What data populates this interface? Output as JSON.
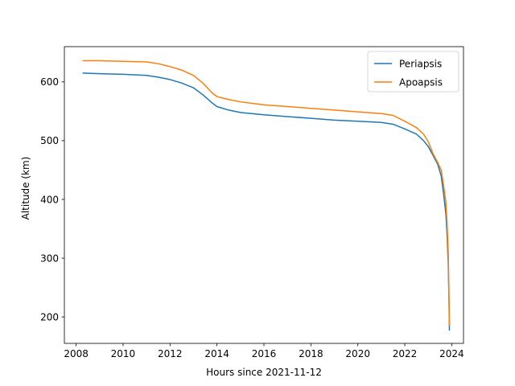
{
  "chart_data": {
    "type": "line",
    "xlabel": "Hours since 2021-11-12",
    "ylabel": "Altitude (km)",
    "xlim": [
      2007.5,
      2024.5
    ],
    "ylim": [
      155,
      660
    ],
    "x_ticks": [
      2008,
      2010,
      2012,
      2014,
      2016,
      2018,
      2020,
      2022,
      2024
    ],
    "y_ticks": [
      200,
      300,
      400,
      500,
      600
    ],
    "grid": false,
    "legend_position": "top-right",
    "series": [
      {
        "name": "Periapsis",
        "color": "#1f77b4",
        "points": [
          [
            2008.3,
            615
          ],
          [
            2009.0,
            614
          ],
          [
            2010.0,
            613
          ],
          [
            2011.0,
            611
          ],
          [
            2011.5,
            608
          ],
          [
            2012.0,
            604
          ],
          [
            2012.5,
            598
          ],
          [
            2013.0,
            590
          ],
          [
            2013.4,
            578
          ],
          [
            2013.8,
            564
          ],
          [
            2014.0,
            558
          ],
          [
            2014.5,
            552
          ],
          [
            2015.0,
            548
          ],
          [
            2016.0,
            544
          ],
          [
            2017.0,
            541
          ],
          [
            2018.0,
            538
          ],
          [
            2019.0,
            535
          ],
          [
            2020.0,
            533
          ],
          [
            2021.0,
            531
          ],
          [
            2021.5,
            528
          ],
          [
            2022.0,
            520
          ],
          [
            2022.5,
            511
          ],
          [
            2022.8,
            500
          ],
          [
            2023.0,
            490
          ],
          [
            2023.2,
            475
          ],
          [
            2023.4,
            460
          ],
          [
            2023.55,
            440
          ],
          [
            2023.65,
            410
          ],
          [
            2023.75,
            375
          ],
          [
            2023.8,
            340
          ],
          [
            2023.85,
            290
          ],
          [
            2023.88,
            230
          ],
          [
            2023.9,
            178
          ]
        ]
      },
      {
        "name": "Apoapsis",
        "color": "#ff7f0e",
        "points": [
          [
            2008.3,
            636
          ],
          [
            2009.0,
            636
          ],
          [
            2010.0,
            635
          ],
          [
            2011.0,
            634
          ],
          [
            2011.5,
            631
          ],
          [
            2012.0,
            626
          ],
          [
            2012.5,
            620
          ],
          [
            2013.0,
            611
          ],
          [
            2013.4,
            598
          ],
          [
            2013.8,
            581
          ],
          [
            2014.0,
            575
          ],
          [
            2014.5,
            570
          ],
          [
            2015.0,
            566
          ],
          [
            2016.0,
            561
          ],
          [
            2017.0,
            558
          ],
          [
            2018.0,
            555
          ],
          [
            2019.0,
            552
          ],
          [
            2020.0,
            549
          ],
          [
            2021.0,
            546
          ],
          [
            2021.5,
            543
          ],
          [
            2022.0,
            533
          ],
          [
            2022.5,
            522
          ],
          [
            2022.8,
            511
          ],
          [
            2023.0,
            498
          ],
          [
            2023.2,
            478
          ],
          [
            2023.4,
            463
          ],
          [
            2023.55,
            450
          ],
          [
            2023.65,
            425
          ],
          [
            2023.75,
            395
          ],
          [
            2023.8,
            360
          ],
          [
            2023.85,
            310
          ],
          [
            2023.88,
            245
          ],
          [
            2023.9,
            186
          ]
        ]
      }
    ]
  }
}
